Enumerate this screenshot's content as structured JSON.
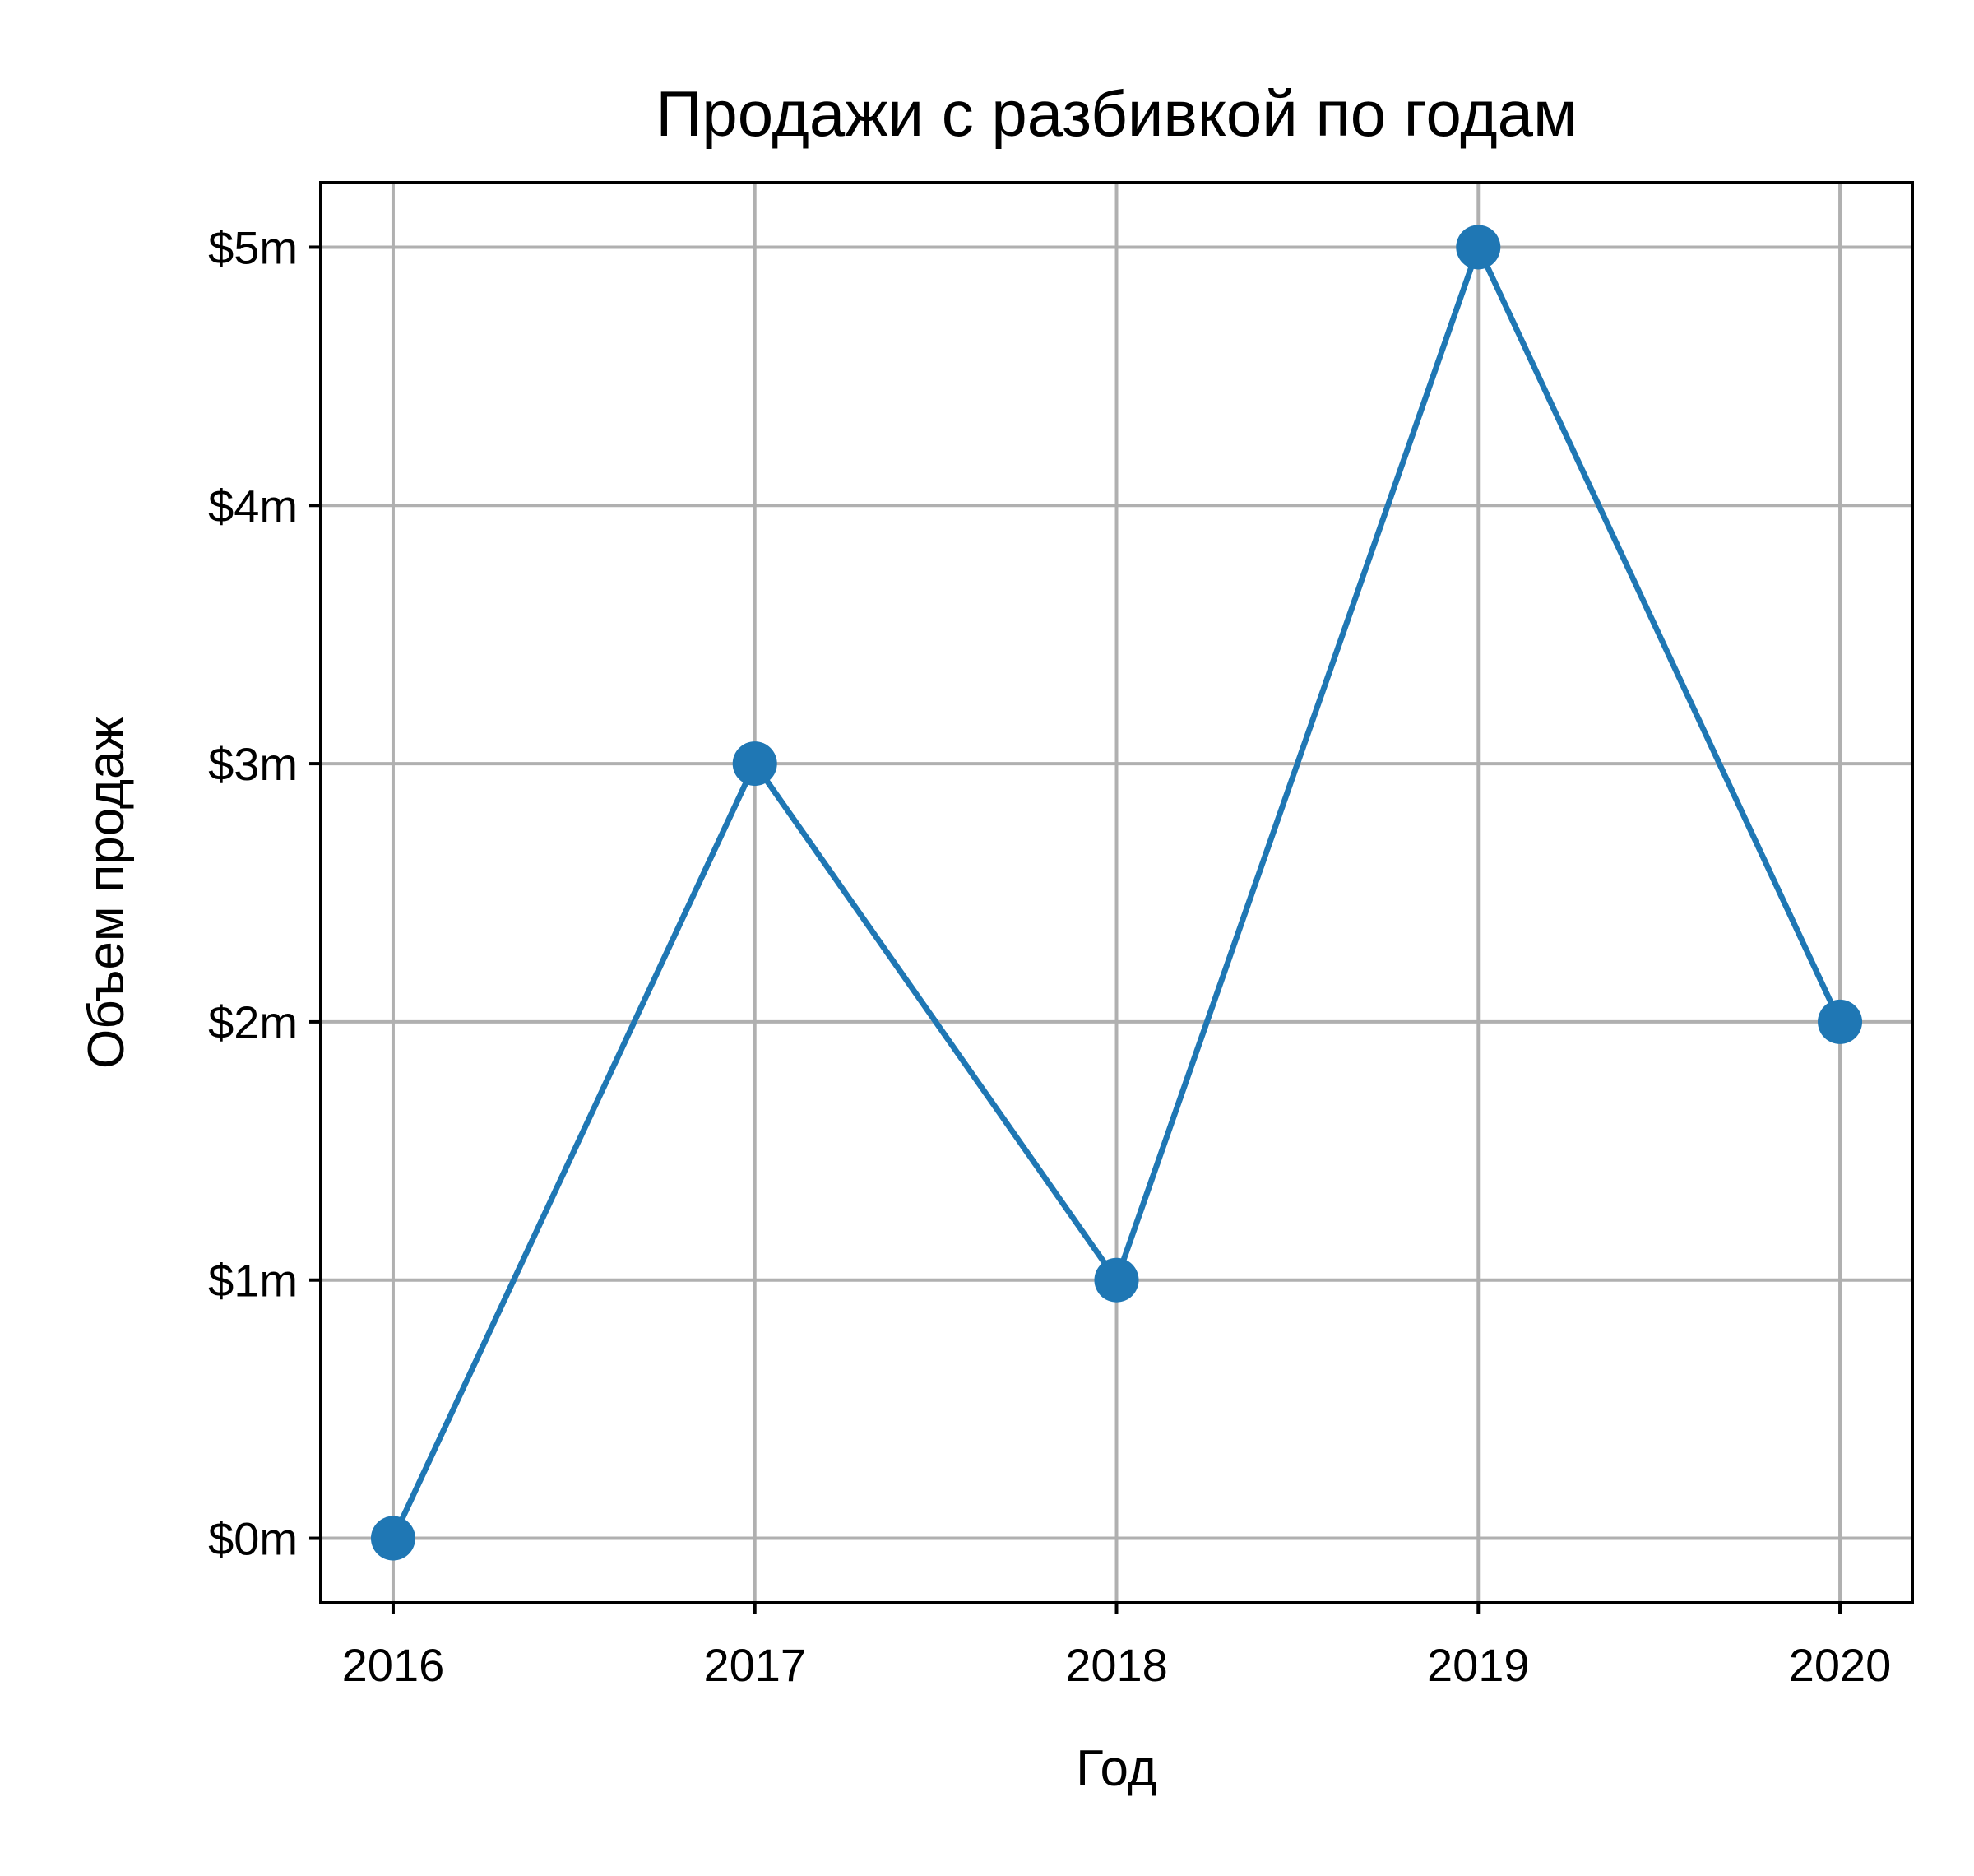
{
  "chart_data": {
    "type": "line",
    "title": "Продажи с разбивкой по годам",
    "xlabel": "Год",
    "ylabel": "Объем продаж",
    "x": [
      2016,
      2017,
      2018,
      2019,
      2020
    ],
    "x_tick_labels": [
      "2016",
      "2017",
      "2018",
      "2019",
      "2020"
    ],
    "series": [
      {
        "values": [
          0,
          3,
          1,
          5,
          2
        ],
        "color": "#1f77b4",
        "marker": "circle"
      }
    ],
    "y_ticks": [
      0,
      1,
      2,
      3,
      4,
      5
    ],
    "y_tick_labels": [
      "$0m",
      "$1m",
      "$2m",
      "$3m",
      "$4m",
      "$5m"
    ],
    "y_unit": "million USD",
    "xlim": [
      2015.8,
      2020.2
    ],
    "ylim": [
      -0.25,
      5.25
    ],
    "grid": true,
    "legend": "none"
  }
}
